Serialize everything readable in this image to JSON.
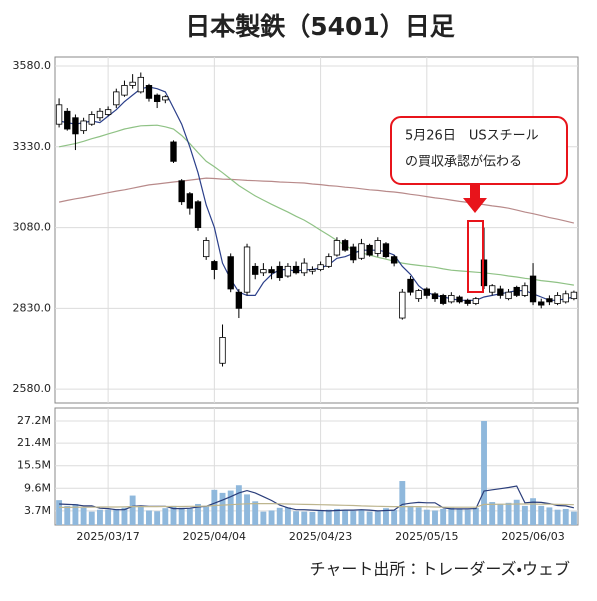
{
  "title": "日本製鉄（5401）日足",
  "source": "チャート出所：トレーダーズ・ウェブ",
  "chart_data": [
    {
      "type": "candlestick",
      "categories": [
        null,
        null,
        null,
        null,
        null,
        null,
        "2025/03/17",
        null,
        null,
        null,
        null,
        null,
        null,
        null,
        null,
        null,
        null,
        null,
        null,
        "2025/04/04",
        null,
        null,
        null,
        null,
        null,
        null,
        null,
        null,
        null,
        null,
        null,
        null,
        "2025/04/23",
        null,
        null,
        null,
        null,
        null,
        null,
        null,
        null,
        null,
        null,
        null,
        null,
        "2025/05/15",
        null,
        null,
        null,
        null,
        null,
        null,
        null,
        null,
        null,
        null,
        null,
        null,
        "2025/06/03",
        null,
        null,
        null,
        null,
        null
      ],
      "open": [
        3400,
        3440,
        3420,
        3380,
        3400,
        3420,
        3430,
        3460,
        3490,
        3520,
        3500,
        3520,
        3490,
        3475,
        3345,
        3225,
        3185,
        3160,
        2990,
        2975,
        2660,
        2990,
        2880,
        2880,
        2960,
        2940,
        2950,
        2960,
        2930,
        2960,
        2940,
        2945,
        2950,
        2960,
        2995,
        3040,
        3020,
        2985,
        3025,
        3000,
        3030,
        2990,
        2800,
        2920,
        2860,
        2890,
        2875,
        2870,
        2850,
        2865,
        2855,
        2845,
        2980,
        2880,
        2890,
        2860,
        2895,
        2870,
        2930,
        2850,
        2860,
        2845,
        2850,
        2860
      ],
      "high": [
        3480,
        3450,
        3430,
        3420,
        3440,
        3450,
        3455,
        3510,
        3535,
        3555,
        3560,
        3525,
        3495,
        3490,
        3350,
        3230,
        3190,
        3165,
        3050,
        2980,
        2780,
        3000,
        2890,
        3030,
        2970,
        2970,
        2960,
        2975,
        2970,
        2975,
        2985,
        2960,
        2975,
        3000,
        3050,
        3045,
        3030,
        3045,
        3030,
        3050,
        3035,
        2995,
        2890,
        2930,
        2890,
        2895,
        2880,
        2875,
        2880,
        2870,
        2860,
        2865,
        3080,
        2905,
        2900,
        2890,
        2900,
        2910,
        2970,
        2860,
        2870,
        2880,
        2885,
        2885
      ],
      "low": [
        3390,
        3380,
        3320,
        3370,
        3395,
        3410,
        3425,
        3450,
        3485,
        3510,
        3495,
        3470,
        3450,
        3465,
        3280,
        3150,
        3120,
        3070,
        2980,
        2920,
        2650,
        2880,
        2800,
        2870,
        2920,
        2930,
        2920,
        2915,
        2925,
        2935,
        2930,
        2935,
        2945,
        2955,
        2990,
        3005,
        2970,
        2980,
        2990,
        2990,
        2985,
        2960,
        2795,
        2870,
        2850,
        2860,
        2850,
        2840,
        2845,
        2845,
        2838,
        2840,
        2890,
        2870,
        2860,
        2855,
        2865,
        2865,
        2840,
        2830,
        2840,
        2840,
        2845,
        2855
      ],
      "close": [
        3460,
        3385,
        3370,
        3410,
        3430,
        3440,
        3445,
        3500,
        3520,
        3530,
        3545,
        3480,
        3470,
        3485,
        3285,
        3160,
        3140,
        3080,
        3040,
        2950,
        2740,
        2890,
        2830,
        3020,
        2935,
        2950,
        2940,
        2925,
        2960,
        2940,
        2970,
        2950,
        2965,
        2990,
        3040,
        3010,
        2980,
        3030,
        2995,
        3040,
        2990,
        2970,
        2880,
        2880,
        2885,
        2870,
        2860,
        2845,
        2870,
        2850,
        2845,
        2860,
        2900,
        2900,
        2870,
        2880,
        2870,
        2900,
        2850,
        2840,
        2850,
        2870,
        2875,
        2880
      ],
      "up_color": "#ffffff",
      "down_color": "#000000",
      "series": [
        {
          "color": "#2b3f8a",
          "values": [
            3410,
            3405,
            3400,
            3405,
            3410,
            3405,
            3425,
            3445,
            3470,
            3490,
            3510,
            3515,
            3510,
            3500,
            3450,
            3400,
            3330,
            3250,
            3150,
            3080,
            2970,
            2920,
            2880,
            2870,
            2870,
            2910,
            2935,
            2950,
            2950,
            2945,
            2950,
            2950,
            2955,
            2965,
            2985,
            2990,
            3000,
            3010,
            3010,
            3010,
            3005,
            2995,
            2960,
            2935,
            2900,
            2880,
            2870,
            2865,
            2860,
            2855,
            2855,
            2855,
            2865,
            2870,
            2875,
            2880,
            2885,
            2885,
            2875,
            2865,
            2855,
            2855,
            2860,
            2865
          ]
        },
        {
          "color": "#8fc285",
          "values": [
            3330,
            3335,
            3340,
            3347,
            3355,
            3362,
            3370,
            3377,
            3385,
            3390,
            3395,
            3396,
            3397,
            3392,
            3385,
            3365,
            3340,
            3312,
            3285,
            3268,
            3250,
            3230,
            3210,
            3194,
            3178,
            3165,
            3152,
            3140,
            3128,
            3115,
            3103,
            3088,
            3072,
            3056,
            3040,
            3025,
            3010,
            3002,
            2995,
            2988,
            2982,
            2976,
            2970,
            2966,
            2963,
            2960,
            2957,
            2952,
            2948,
            2946,
            2944,
            2942,
            2940,
            2937,
            2934,
            2930,
            2927,
            2923,
            2920,
            2916,
            2913,
            2910,
            2906,
            2902
          ]
        },
        {
          "color": "#b88a8a",
          "values": [
            3159,
            3164,
            3169,
            3173,
            3178,
            3183,
            3188,
            3193,
            3197,
            3202,
            3207,
            3212,
            3215,
            3218,
            3221,
            3224,
            3227,
            3230,
            3233,
            3232,
            3230,
            3229,
            3228,
            3226,
            3225,
            3224,
            3223,
            3221,
            3220,
            3219,
            3218,
            3215,
            3213,
            3210,
            3208,
            3205,
            3203,
            3200,
            3197,
            3195,
            3192,
            3190,
            3187,
            3183,
            3180,
            3176,
            3172,
            3169,
            3165,
            3161,
            3158,
            3154,
            3151,
            3147,
            3144,
            3140,
            3134,
            3128,
            3123,
            3117,
            3111,
            3106,
            3100,
            3094
          ]
        }
      ],
      "ylim": [
        2537,
        3608
      ],
      "yticks": [
        {
          "value": 2580,
          "label": "2580.0"
        },
        {
          "value": 2830,
          "label": "2830.0"
        },
        {
          "value": 3080,
          "label": "3080.0"
        },
        {
          "value": 3330,
          "label": "3330.0"
        },
        {
          "value": 3580,
          "label": "3580.0"
        }
      ],
      "grid": true,
      "annotation": [
        "5月26日　USスチール",
        "の買収承認が伝わる"
      ],
      "annotation_color": "#e8141b"
    },
    {
      "type": "bar",
      "color": "#8fb8dc",
      "values": [
        6500000,
        5000000,
        5500000,
        4500000,
        3500000,
        4000000,
        4000000,
        4200000,
        4500000,
        7700000,
        4800000,
        3800000,
        3600000,
        4400000,
        5000000,
        4500000,
        4300000,
        5500000,
        5000000,
        9200000,
        8400000,
        9000000,
        10400000,
        8000000,
        6200000,
        3500000,
        3800000,
        4500000,
        4600000,
        3600000,
        3500000,
        3400000,
        3800000,
        4000000,
        4200000,
        3900000,
        3700000,
        4000000,
        3500000,
        3600000,
        4400000,
        3900000,
        11500000,
        5000000,
        4600000,
        4000000,
        3800000,
        4200000,
        4500000,
        4300000,
        4000000,
        4500000,
        27200000,
        6000000,
        5500000,
        5800000,
        6600000,
        5000000,
        7000000,
        5000000,
        4600000,
        4000000,
        4200000,
        3500000
      ],
      "series": [
        {
          "color": "#2a3d7a",
          "values": [
            5500000,
            5400000,
            5300000,
            5000000,
            5000000,
            4400000,
            4300000,
            4000000,
            4000000,
            4900000,
            5000000,
            4900000,
            4900000,
            4900000,
            4300000,
            4300000,
            4400000,
            4700000,
            4900000,
            5700000,
            6500000,
            7400000,
            8400000,
            9000000,
            8400000,
            7400000,
            6400000,
            5200000,
            4500000,
            4000000,
            4000000,
            3900000,
            3800000,
            3700000,
            3800000,
            3900000,
            3900000,
            4000000,
            3900000,
            3700000,
            3800000,
            3900000,
            5400000,
            5700000,
            5900000,
            5800000,
            5800000,
            4500000,
            4200000,
            4200000,
            4200000,
            4300000,
            8900000,
            9200000,
            9500000,
            9800000,
            10200000,
            5800000,
            6000000,
            5900000,
            5600000,
            5100000,
            5000000,
            4500000
          ]
        },
        {
          "color": "#bdb58e",
          "values": [
            4600000,
            4600000,
            4650000,
            4650000,
            4650000,
            4700000,
            4700000,
            4700000,
            4750000,
            4800000,
            4800000,
            4800000,
            4800000,
            4850000,
            4850000,
            4850000,
            4900000,
            4900000,
            4950000,
            5100000,
            5200000,
            5300000,
            5450000,
            5550000,
            5600000,
            5600000,
            5600000,
            5550000,
            5500000,
            5450000,
            5400000,
            5350000,
            5300000,
            5250000,
            5200000,
            5150000,
            5100000,
            5000000,
            4950000,
            4900000,
            4850000,
            4800000,
            4800000,
            4800000,
            4800000,
            4750000,
            4700000,
            4650000,
            4650000,
            4650000,
            4650000,
            4650000,
            5400000,
            5400000,
            5450000,
            5450000,
            5500000,
            5500000,
            5500000,
            5450000,
            5450000,
            5400000,
            5350000,
            5300000
          ]
        }
      ],
      "ylim": [
        0,
        30600000
      ],
      "yticks": [
        {
          "value": 3700000,
          "label": "3.7M"
        },
        {
          "value": 9600000,
          "label": "9.6M"
        },
        {
          "value": 15500000,
          "label": "15.5M"
        },
        {
          "value": 21400000,
          "label": "21.4M"
        },
        {
          "value": 27200000,
          "label": "27.2M"
        }
      ],
      "grid": true
    }
  ]
}
